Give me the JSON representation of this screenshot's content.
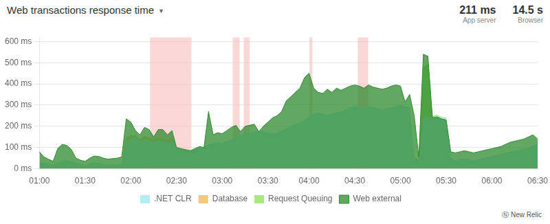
{
  "chart_data": {
    "type": "area",
    "title": "Web transactions response time",
    "annotations": [
      "▼",
      "211 ms",
      "App server",
      "14.5 s",
      "Browser",
      "Ⓝ New Relic"
    ],
    "categories": [
      "01:00",
      null,
      null,
      null,
      null,
      null,
      null,
      null,
      null,
      null,
      "01:30",
      null,
      null,
      null,
      null,
      null,
      null,
      null,
      null,
      null,
      "02:00",
      null,
      null,
      null,
      null,
      null,
      null,
      null,
      null,
      null,
      "02:30",
      null,
      null,
      null,
      null,
      null,
      null,
      null,
      null,
      null,
      "03:00",
      null,
      null,
      null,
      null,
      null,
      null,
      null,
      null,
      null,
      "03:30",
      null,
      null,
      null,
      null,
      null,
      null,
      null,
      null,
      "04:00",
      null,
      null,
      null,
      null,
      null,
      null,
      null,
      null,
      null,
      "04:30",
      null,
      null,
      null,
      null,
      null,
      null,
      null,
      null,
      null,
      "05:00",
      null,
      null,
      null,
      null,
      null,
      null,
      null,
      null,
      null,
      "05:30",
      null,
      null,
      null,
      null,
      null,
      null,
      null,
      null,
      null,
      "06:00",
      null,
      null,
      null,
      null,
      null,
      null,
      null,
      null,
      null,
      "06:30"
    ],
    "series": [
      {
        "name": ".NET CLR",
        "type": "stacked_area",
        "color": "#b3ecf5",
        "values": [
          30,
          28,
          22,
          18,
          30,
          38,
          42,
          35,
          28,
          22,
          18,
          25,
          30,
          28,
          22,
          18,
          20,
          20,
          25,
          130,
          140,
          150,
          130,
          140,
          135,
          125,
          135,
          130,
          125,
          130,
          100,
          90,
          85,
          80,
          90,
          100,
          105,
          115,
          120,
          125,
          120,
          130,
          140,
          150,
          160,
          165,
          170,
          175,
          180,
          175,
          170,
          165,
          170,
          180,
          190,
          200,
          210,
          220,
          230,
          250,
          260,
          265,
          260,
          255,
          260,
          265,
          270,
          280,
          290,
          295,
          290,
          285,
          295,
          290,
          285,
          280,
          285,
          290,
          295,
          300,
          295,
          290,
          50,
          30,
          240,
          245,
          240,
          250,
          240,
          235,
          50,
          40,
          45,
          50,
          45,
          40,
          45,
          50,
          55,
          60,
          65,
          70,
          75,
          80,
          85,
          90,
          95,
          100,
          110,
          120
        ]
      },
      {
        "name": "Database",
        "type": "stacked_area",
        "color": "#f5c97a",
        "values": [
          0,
          0,
          0,
          0,
          0,
          0,
          0,
          0,
          0,
          0,
          0,
          0,
          0,
          0,
          0,
          0,
          0,
          0,
          0,
          20,
          15,
          10,
          8,
          15,
          12,
          10,
          12,
          10,
          8,
          12,
          0,
          0,
          0,
          0,
          0,
          0,
          0,
          0,
          0,
          0,
          0,
          0,
          0,
          0,
          0,
          0,
          0,
          0,
          0,
          0,
          0,
          0,
          0,
          0,
          0,
          0,
          0,
          0,
          0,
          0,
          0,
          0,
          0,
          0,
          0,
          0,
          0,
          0,
          0,
          0,
          0,
          0,
          0,
          0,
          0,
          0,
          0,
          0,
          0,
          0,
          0,
          0,
          0,
          0,
          0,
          0,
          0,
          0,
          0,
          0,
          0,
          0,
          0,
          0,
          0,
          0,
          0,
          0,
          0,
          0,
          0,
          0,
          0,
          0,
          0,
          0,
          0,
          0,
          0,
          0
        ]
      },
      {
        "name": "Request Queuing",
        "type": "stacked_area",
        "color": "#a8e87c",
        "values": [
          0,
          0,
          0,
          0,
          0,
          0,
          0,
          0,
          0,
          0,
          0,
          0,
          0,
          0,
          0,
          0,
          0,
          0,
          0,
          0,
          0,
          0,
          0,
          0,
          0,
          0,
          0,
          0,
          0,
          0,
          0,
          0,
          0,
          0,
          0,
          0,
          0,
          0,
          0,
          0,
          0,
          0,
          0,
          0,
          0,
          0,
          0,
          0,
          0,
          0,
          0,
          0,
          0,
          0,
          0,
          0,
          0,
          0,
          0,
          0,
          0,
          0,
          0,
          0,
          0,
          0,
          0,
          0,
          0,
          0,
          0,
          0,
          0,
          0,
          0,
          0,
          0,
          0,
          0,
          0,
          0,
          0,
          5,
          10,
          240,
          250,
          10,
          5,
          5,
          5,
          0,
          0,
          0,
          0,
          0,
          0,
          0,
          0,
          0,
          0,
          0,
          0,
          0,
          0,
          0,
          0,
          0,
          0,
          0,
          0
        ]
      },
      {
        "name": "Web external",
        "type": "area",
        "color": "#2d8a2d",
        "values": [
          80,
          55,
          45,
          35,
          95,
          115,
          110,
          90,
          50,
          40,
          35,
          50,
          60,
          58,
          50,
          45,
          48,
          50,
          55,
          235,
          220,
          180,
          160,
          195,
          185,
          150,
          185,
          185,
          160,
          180,
          100,
          95,
          90,
          85,
          95,
          105,
          100,
          270,
          160,
          170,
          165,
          180,
          195,
          205,
          175,
          200,
          205,
          210,
          175,
          200,
          220,
          240,
          250,
          270,
          320,
          340,
          360,
          380,
          430,
          450,
          380,
          360,
          355,
          375,
          360,
          380,
          370,
          380,
          390,
          395,
          390,
          380,
          395,
          385,
          380,
          375,
          380,
          390,
          395,
          390,
          315,
          350,
          250,
          55,
          540,
          530,
          240,
          245,
          235,
          230,
          80,
          75,
          80,
          85,
          80,
          75,
          80,
          85,
          90,
          95,
          100,
          105,
          115,
          125,
          130,
          135,
          140,
          150,
          160,
          140
        ]
      }
    ],
    "highlight_regions": [
      {
        "x0": 24.198,
        "x1": 33.245,
        "color": "#f5b8b8"
      },
      {
        "x0": 42.292,
        "x1": 43.818,
        "color": "#f5b8b8"
      },
      {
        "x0": 44.69,
        "x1": 45.998,
        "color": "#f5b8b8"
      },
      {
        "x0": 59.078,
        "x1": 59.732,
        "color": "#f5b8b8"
      },
      {
        "x0": 69.651,
        "x1": 71.94,
        "color": "#f5b8b8"
      }
    ],
    "ylim": [
      0,
      620
    ],
    "yticks": [
      {
        "value": 0,
        "label": "0 ms"
      },
      {
        "value": 100,
        "label": "100 ms"
      },
      {
        "value": 200,
        "label": "200 ms"
      },
      {
        "value": 300,
        "label": "300 ms"
      },
      {
        "value": 400,
        "label": "400 ms"
      },
      {
        "value": 500,
        "label": "500 ms"
      },
      {
        "value": 600,
        "label": "600 ms"
      }
    ],
    "stacked": true,
    "grid": "y",
    "legend": "bottom"
  }
}
